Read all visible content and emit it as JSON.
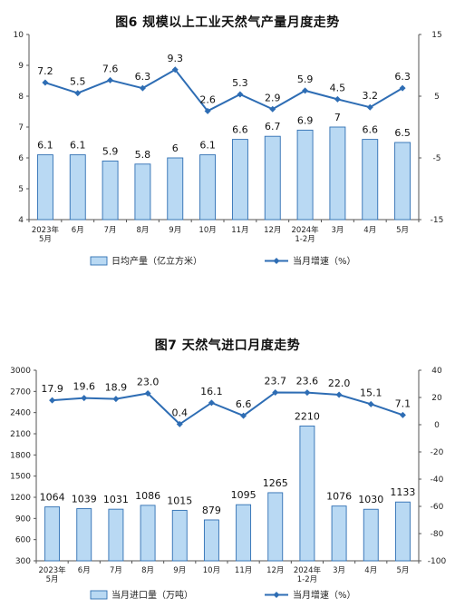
{
  "chart_data": [
    {
      "type": "bar",
      "title": "图6  规模以上工业天然气产量月度走势",
      "categories": [
        [
          "2023年",
          "5月"
        ],
        [
          "6月"
        ],
        [
          "7月"
        ],
        [
          "8月"
        ],
        [
          "9月"
        ],
        [
          "10月"
        ],
        [
          "11月"
        ],
        [
          "12月"
        ],
        [
          "2024年",
          "1-2月"
        ],
        [
          "3月"
        ],
        [
          "4月"
        ],
        [
          "5月"
        ]
      ],
      "series": [
        {
          "name": "日均产量（亿立方米）",
          "type": "bar",
          "axis": "left",
          "values": [
            6.1,
            6.1,
            5.9,
            5.8,
            6.0,
            6.1,
            6.6,
            6.7,
            6.9,
            7.0,
            6.6,
            6.5
          ]
        },
        {
          "name": "当月增速（%）",
          "type": "line",
          "axis": "right",
          "values": [
            7.2,
            5.5,
            7.6,
            6.3,
            9.3,
            2.6,
            5.3,
            2.9,
            5.9,
            4.5,
            3.2,
            6.3
          ]
        }
      ],
      "ylim_left": [
        4,
        10
      ],
      "yticks_left": [
        4,
        5,
        6,
        7,
        8,
        9,
        10
      ],
      "ylim_right": [
        -15,
        15
      ],
      "yticks_right": [
        -15,
        -5,
        5,
        15
      ],
      "legend_position": "bottom",
      "colors": {
        "bar_fill": "#b9d9f3",
        "bar_stroke": "#2f6fb3",
        "line": "#2e6db4"
      }
    },
    {
      "type": "bar",
      "title": "图7  天然气进口月度走势",
      "categories": [
        [
          "2023年",
          "5月"
        ],
        [
          "6月"
        ],
        [
          "7月"
        ],
        [
          "8月"
        ],
        [
          "9月"
        ],
        [
          "10月"
        ],
        [
          "11月"
        ],
        [
          "12月"
        ],
        [
          "2024年",
          "1-2月"
        ],
        [
          "3月"
        ],
        [
          "4月"
        ],
        [
          "5月"
        ]
      ],
      "series": [
        {
          "name": "当月进口量（万吨）",
          "type": "bar",
          "axis": "left",
          "values": [
            1064,
            1039,
            1031,
            1086,
            1015,
            879,
            1095,
            1265,
            2210,
            1076,
            1030,
            1133
          ]
        },
        {
          "name": "当月增速（%）",
          "type": "line",
          "axis": "right",
          "values": [
            17.9,
            19.6,
            18.9,
            23.0,
            0.4,
            16.1,
            6.6,
            23.7,
            23.6,
            22.0,
            15.1,
            7.1
          ]
        }
      ],
      "ylim_left": [
        300,
        3000
      ],
      "yticks_left": [
        300,
        600,
        900,
        1200,
        1500,
        1800,
        2100,
        2400,
        2700,
        3000
      ],
      "ylim_right": [
        -100,
        40
      ],
      "yticks_right": [
        -100,
        -80,
        -60,
        -40,
        -20,
        0,
        20,
        40
      ],
      "legend_position": "bottom",
      "colors": {
        "bar_fill": "#b9d9f3",
        "bar_stroke": "#2f6fb3",
        "line": "#2e6db4"
      }
    }
  ]
}
